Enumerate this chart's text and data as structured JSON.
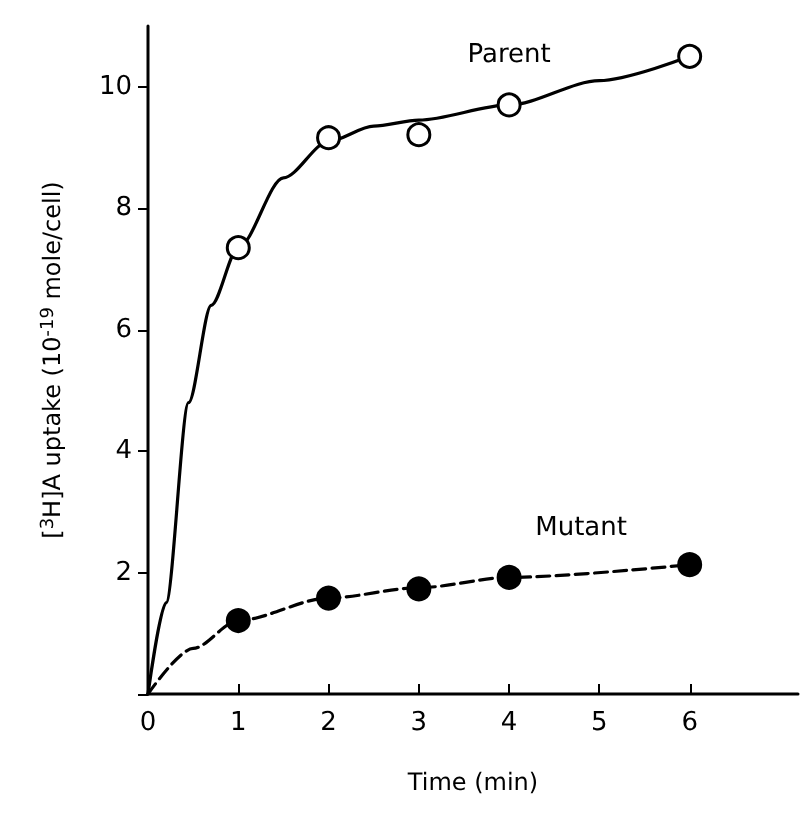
{
  "chart_data": {
    "type": "scatter",
    "xlabel": "Time (min)",
    "ylabel": "[$^{3}$H]A uptake (10$^{-19}$ mole/cell)",
    "xlim": [
      0,
      7.2
    ],
    "ylim": [
      0,
      11
    ],
    "xticks": [
      0,
      1,
      2,
      3,
      4,
      5,
      6
    ],
    "yticks": [
      {
        "value": 0,
        "label": null
      },
      2,
      4,
      6,
      8,
      10
    ],
    "grid": false,
    "legend": false,
    "series": [
      {
        "type": "line",
        "color": "#000000",
        "line_style": "solid",
        "marker": "none",
        "x": [
          0,
          0.2,
          0.45,
          0.7,
          1,
          1.5,
          2,
          2.5,
          3,
          4,
          5,
          6
        ],
        "values": [
          0,
          1.5,
          4.8,
          6.4,
          7.35,
          8.5,
          9.1,
          9.35,
          9.45,
          9.7,
          10.1,
          10.5
        ]
      },
      {
        "type": "line",
        "color": "#000000",
        "line_style": "dashed",
        "marker": "none",
        "x": [
          0,
          0.5,
          1,
          2,
          3,
          4,
          6
        ],
        "values": [
          0,
          0.75,
          1.21,
          1.58,
          1.75,
          1.92,
          2.13
        ]
      },
      {
        "name": "Parent",
        "color": "#ffffff",
        "marker": "circle",
        "x": [
          1,
          2,
          3,
          4,
          6
        ],
        "values": [
          7.35,
          9.16,
          9.21,
          9.7,
          10.5
        ]
      },
      {
        "name": "Mutant",
        "color": "#000000",
        "marker": "circle",
        "x": [
          1,
          2,
          3,
          4,
          6
        ],
        "values": [
          1.21,
          1.58,
          1.73,
          1.92,
          2.13
        ]
      }
    ]
  }
}
